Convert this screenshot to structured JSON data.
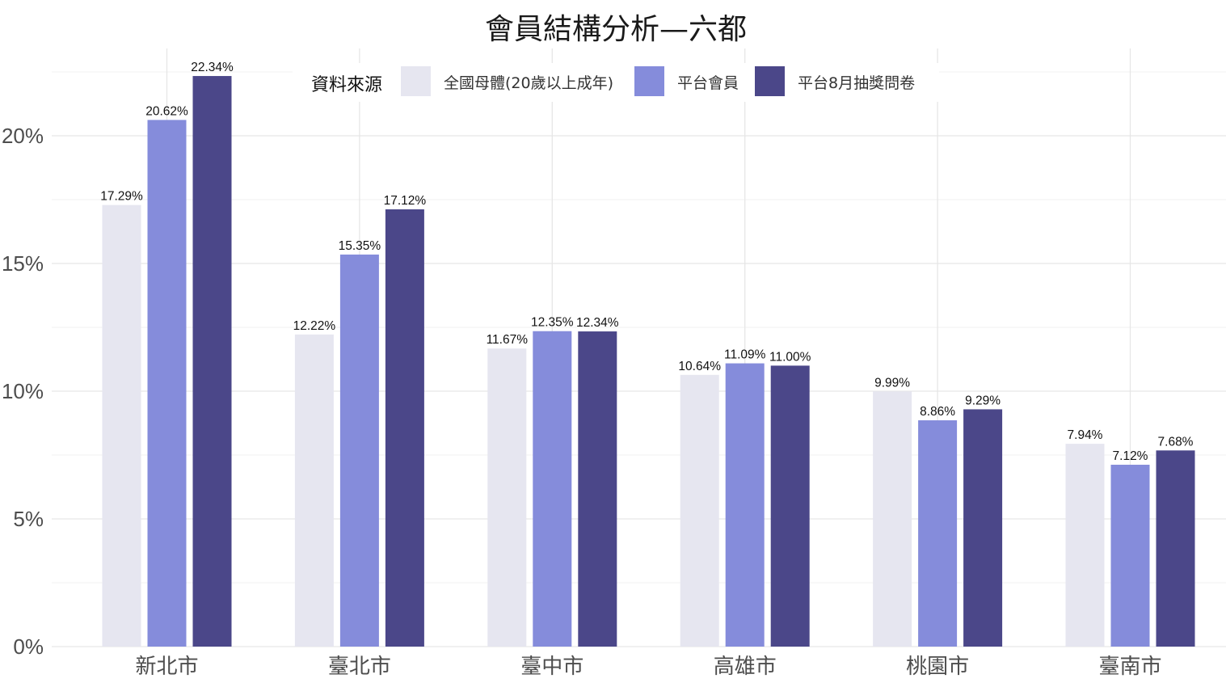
{
  "chart_data": {
    "type": "bar",
    "title": "會員結構分析—六都",
    "xlabel": "",
    "ylabel": "",
    "categories": [
      "新北市",
      "臺北市",
      "臺中市",
      "高雄市",
      "桃園市",
      "臺南市"
    ],
    "series": [
      {
        "name": "全國母體(20歲以上成年)",
        "color": "#e6e6f0",
        "values": [
          17.29,
          12.22,
          11.67,
          10.64,
          9.99,
          7.94
        ],
        "labels": [
          "17.29%",
          "12.22%",
          "11.67%",
          "10.64%",
          "9.99%",
          "7.94%"
        ]
      },
      {
        "name": "平台會員",
        "color": "#858cdb",
        "values": [
          20.62,
          15.35,
          12.35,
          11.09,
          8.86,
          7.12
        ],
        "labels": [
          "20.62%",
          "15.35%",
          "12.35%",
          "11.09%",
          "8.86%",
          "7.12%"
        ]
      },
      {
        "name": "平台8月抽獎問卷",
        "color": "#4b4789",
        "values": [
          22.34,
          17.12,
          12.34,
          11.0,
          9.29,
          7.68
        ],
        "labels": [
          "22.34%",
          "17.12%",
          "12.34%",
          "11.00%",
          "9.29%",
          "7.68%"
        ]
      }
    ],
    "ylim": [
      0,
      23.5
    ],
    "yticks": [
      0,
      5,
      10,
      15,
      20
    ],
    "ytick_labels": [
      "0%",
      "5%",
      "10%",
      "15%",
      "20%"
    ],
    "grid": true,
    "legend": {
      "title": "資料來源",
      "placement": "top-center"
    }
  }
}
